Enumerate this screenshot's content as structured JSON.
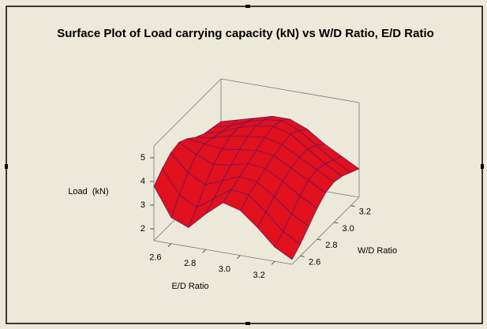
{
  "chart_data": {
    "type": "surface",
    "title": "Surface Plot of Load carrying capacity (kN) vs W/D Ratio, E/D Ratio",
    "xlabel": "E/D Ratio",
    "ylabel": "W/D Ratio",
    "zlabel": "Load  (kN)",
    "x": [
      2.5,
      2.6,
      2.7,
      2.8,
      2.9,
      3.0,
      3.1,
      3.2,
      3.3
    ],
    "y": [
      2.5,
      2.6,
      2.7,
      2.8,
      2.9,
      3.0,
      3.1,
      3.2,
      3.3
    ],
    "z": [
      [
        3.8,
        2.6,
        2.3,
        3.0,
        3.6,
        3.4,
        2.8,
        2.1,
        1.7
      ],
      [
        4.2,
        3.2,
        2.8,
        3.3,
        3.8,
        3.7,
        3.1,
        2.4,
        2.0
      ],
      [
        4.5,
        3.8,
        3.4,
        3.7,
        4.0,
        3.9,
        3.4,
        2.8,
        2.4
      ],
      [
        4.6,
        4.2,
        3.9,
        4.0,
        4.2,
        4.1,
        3.7,
        3.2,
        2.8
      ],
      [
        4.4,
        4.3,
        4.2,
        4.3,
        4.4,
        4.3,
        3.9,
        3.5,
        3.1
      ],
      [
        4.1,
        4.2,
        4.4,
        4.5,
        4.6,
        4.4,
        4.0,
        3.6,
        3.2
      ],
      [
        3.9,
        4.1,
        4.4,
        4.6,
        4.7,
        4.5,
        4.0,
        3.5,
        3.1
      ],
      [
        3.8,
        4.0,
        4.3,
        4.5,
        4.6,
        4.3,
        3.8,
        3.3,
        2.9
      ],
      [
        3.7,
        3.9,
        4.1,
        4.3,
        4.3,
        4.0,
        3.5,
        3.1,
        2.7
      ]
    ],
    "xlim": [
      2.5,
      3.3
    ],
    "ylim": [
      2.5,
      3.3
    ],
    "zlim": [
      1.5,
      5.5
    ],
    "xticks": [
      2.6,
      2.8,
      {
        "value": 3,
        "label": "3.0"
      },
      3.2
    ],
    "yticks": [
      2.6,
      2.8,
      {
        "value": 3,
        "label": "3.0"
      },
      3.2
    ],
    "zticks": [
      2,
      3,
      4,
      5
    ],
    "color": "#e0101c",
    "edge_color": "#4a1670"
  }
}
